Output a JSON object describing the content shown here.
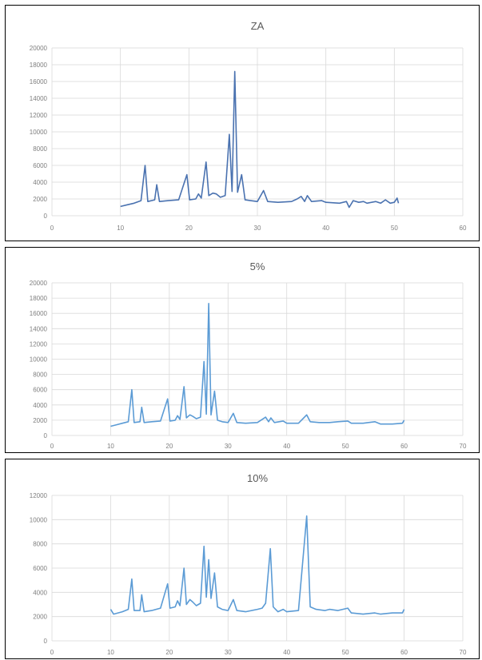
{
  "chart_data": [
    {
      "type": "line",
      "title": "ZA",
      "xlim": [
        0,
        60
      ],
      "ylim": [
        0,
        20000
      ],
      "xticks": [
        0,
        10,
        20,
        30,
        40,
        50,
        60
      ],
      "yticks": [
        0,
        2000,
        4000,
        6000,
        8000,
        10000,
        12000,
        14000,
        16000,
        18000,
        20000
      ],
      "grid": true,
      "color": "#4a72b0",
      "series": [
        {
          "values": [
            [
              10,
              1100
            ],
            [
              11,
              1300
            ],
            [
              12,
              1500
            ],
            [
              13,
              1800
            ],
            [
              13.6,
              6000
            ],
            [
              14,
              1700
            ],
            [
              15,
              1900
            ],
            [
              15.3,
              3700
            ],
            [
              15.7,
              1700
            ],
            [
              17,
              1800
            ],
            [
              18.5,
              1900
            ],
            [
              19.7,
              4900
            ],
            [
              20.1,
              1900
            ],
            [
              21,
              2000
            ],
            [
              21.4,
              2600
            ],
            [
              21.8,
              2100
            ],
            [
              22.5,
              6400
            ],
            [
              22.9,
              2400
            ],
            [
              23.5,
              2700
            ],
            [
              24,
              2600
            ],
            [
              24.6,
              2200
            ],
            [
              25.3,
              2400
            ],
            [
              25.9,
              9700
            ],
            [
              26.3,
              2900
            ],
            [
              26.7,
              17200
            ],
            [
              27.1,
              2800
            ],
            [
              27.7,
              4900
            ],
            [
              28.2,
              1900
            ],
            [
              29,
              1800
            ],
            [
              30,
              1700
            ],
            [
              30.9,
              3000
            ],
            [
              31.5,
              1700
            ],
            [
              33,
              1600
            ],
            [
              35,
              1700
            ],
            [
              35.8,
              2000
            ],
            [
              36.4,
              2300
            ],
            [
              36.9,
              1700
            ],
            [
              37.3,
              2400
            ],
            [
              37.9,
              1700
            ],
            [
              39.4,
              1800
            ],
            [
              40,
              1600
            ],
            [
              42,
              1500
            ],
            [
              43,
              1700
            ],
            [
              43.4,
              1000
            ],
            [
              44,
              1800
            ],
            [
              44.8,
              1600
            ],
            [
              45.5,
              1700
            ],
            [
              46,
              1500
            ],
            [
              47.3,
              1700
            ],
            [
              48,
              1500
            ],
            [
              48.7,
              1900
            ],
            [
              49.4,
              1500
            ],
            [
              50,
              1600
            ],
            [
              50.4,
              2100
            ],
            [
              50.6,
              1500
            ]
          ]
        }
      ]
    },
    {
      "type": "line",
      "title": "5%",
      "xlim": [
        0,
        70
      ],
      "ylim": [
        0,
        20000
      ],
      "xticks": [
        0,
        10,
        20,
        30,
        40,
        50,
        60,
        70
      ],
      "yticks": [
        0,
        2000,
        4000,
        6000,
        8000,
        10000,
        12000,
        14000,
        16000,
        18000,
        20000
      ],
      "grid": true,
      "color": "#5b9bd5",
      "series": [
        {
          "values": [
            [
              10,
              1200
            ],
            [
              11,
              1400
            ],
            [
              12,
              1600
            ],
            [
              13,
              1800
            ],
            [
              13.6,
              6000
            ],
            [
              14,
              1700
            ],
            [
              15,
              1800
            ],
            [
              15.3,
              3700
            ],
            [
              15.7,
              1700
            ],
            [
              17,
              1800
            ],
            [
              18.5,
              1900
            ],
            [
              19.7,
              4800
            ],
            [
              20.1,
              1900
            ],
            [
              21,
              2000
            ],
            [
              21.4,
              2600
            ],
            [
              21.8,
              2100
            ],
            [
              22.5,
              6400
            ],
            [
              22.9,
              2300
            ],
            [
              23.5,
              2700
            ],
            [
              24,
              2500
            ],
            [
              24.6,
              2200
            ],
            [
              25.3,
              2400
            ],
            [
              25.9,
              9700
            ],
            [
              26.3,
              2800
            ],
            [
              26.7,
              17300
            ],
            [
              27.1,
              2700
            ],
            [
              27.7,
              5800
            ],
            [
              28.2,
              2000
            ],
            [
              29,
              1800
            ],
            [
              30,
              1700
            ],
            [
              30.9,
              2900
            ],
            [
              31.5,
              1700
            ],
            [
              33,
              1600
            ],
            [
              35,
              1700
            ],
            [
              35.8,
              2100
            ],
            [
              36.4,
              2400
            ],
            [
              36.9,
              1800
            ],
            [
              37.3,
              2300
            ],
            [
              37.9,
              1700
            ],
            [
              39.4,
              1900
            ],
            [
              40,
              1600
            ],
            [
              42,
              1600
            ],
            [
              43.4,
              2700
            ],
            [
              44,
              1800
            ],
            [
              45.5,
              1700
            ],
            [
              47.3,
              1700
            ],
            [
              48.7,
              1800
            ],
            [
              50.4,
              1900
            ],
            [
              51,
              1600
            ],
            [
              53,
              1600
            ],
            [
              55,
              1800
            ],
            [
              56,
              1500
            ],
            [
              58,
              1500
            ],
            [
              59.7,
              1600
            ],
            [
              60,
              2000
            ]
          ]
        }
      ]
    },
    {
      "type": "line",
      "title": "10%",
      "xlim": [
        0,
        70
      ],
      "ylim": [
        0,
        12000
      ],
      "xticks": [
        0,
        10,
        20,
        30,
        40,
        50,
        60,
        70
      ],
      "yticks": [
        0,
        2000,
        4000,
        6000,
        8000,
        10000,
        12000
      ],
      "grid": true,
      "color": "#5b9bd5",
      "series": [
        {
          "values": [
            [
              10,
              2600
            ],
            [
              10.5,
              2200
            ],
            [
              12,
              2400
            ],
            [
              13,
              2600
            ],
            [
              13.6,
              5100
            ],
            [
              14,
              2500
            ],
            [
              15,
              2500
            ],
            [
              15.3,
              3800
            ],
            [
              15.7,
              2400
            ],
            [
              17,
              2500
            ],
            [
              18.5,
              2700
            ],
            [
              19.7,
              4700
            ],
            [
              20.1,
              2700
            ],
            [
              21,
              2800
            ],
            [
              21.4,
              3300
            ],
            [
              21.8,
              2900
            ],
            [
              22.5,
              6000
            ],
            [
              22.9,
              3000
            ],
            [
              23.5,
              3400
            ],
            [
              24,
              3200
            ],
            [
              24.6,
              2900
            ],
            [
              25.3,
              3100
            ],
            [
              25.9,
              7800
            ],
            [
              26.3,
              3600
            ],
            [
              26.7,
              6700
            ],
            [
              27.1,
              3500
            ],
            [
              27.7,
              5600
            ],
            [
              28.2,
              2800
            ],
            [
              29,
              2600
            ],
            [
              30,
              2500
            ],
            [
              30.9,
              3400
            ],
            [
              31.5,
              2500
            ],
            [
              33,
              2400
            ],
            [
              35,
              2600
            ],
            [
              35.8,
              2700
            ],
            [
              36.4,
              3100
            ],
            [
              37.2,
              7600
            ],
            [
              37.7,
              2800
            ],
            [
              38.5,
              2400
            ],
            [
              39.4,
              2600
            ],
            [
              40,
              2400
            ],
            [
              42,
              2500
            ],
            [
              43.4,
              10300
            ],
            [
              44,
              2800
            ],
            [
              45,
              2600
            ],
            [
              46.5,
              2500
            ],
            [
              47.3,
              2600
            ],
            [
              48.7,
              2500
            ],
            [
              50.4,
              2700
            ],
            [
              51,
              2300
            ],
            [
              53,
              2200
            ],
            [
              55,
              2300
            ],
            [
              56,
              2200
            ],
            [
              58,
              2300
            ],
            [
              59.7,
              2300
            ],
            [
              60,
              2600
            ]
          ]
        }
      ]
    }
  ]
}
